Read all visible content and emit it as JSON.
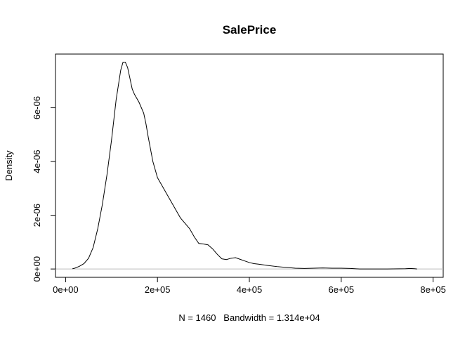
{
  "chart_data": {
    "type": "line",
    "title": "SalePrice",
    "xlabel": "N = 1460   Bandwidth = 1.314e+04",
    "ylabel": "Density",
    "xlim": [
      -22000,
      822000
    ],
    "ylim": [
      -3.1e-07,
      8e-06
    ],
    "x_ticks": [
      {
        "value": 0,
        "label": "0e+00"
      },
      {
        "value": 200000,
        "label": "2e+05"
      },
      {
        "value": 400000,
        "label": "4e+05"
      },
      {
        "value": 600000,
        "label": "6e+05"
      },
      {
        "value": 800000,
        "label": "8e+05"
      }
    ],
    "y_ticks": [
      {
        "value": 0,
        "label": "0e+00"
      },
      {
        "value": 2e-06,
        "label": "2e-06"
      },
      {
        "value": 4e-06,
        "label": "4e-06"
      },
      {
        "value": 6e-06,
        "label": "6e-06"
      }
    ],
    "baseline": 0,
    "baseline_color": "#bebebe",
    "line_color": "#000000",
    "series": [
      {
        "x": [
          15000,
          20000,
          30000,
          40000,
          50000,
          60000,
          70000,
          80000,
          90000,
          100000,
          110000,
          120000,
          125000,
          130000,
          135000,
          140000,
          145000,
          150000,
          160000,
          170000,
          175000,
          180000,
          190000,
          200000,
          210000,
          220000,
          230000,
          240000,
          250000,
          260000,
          270000,
          280000,
          290000,
          300000,
          310000,
          320000,
          330000,
          340000,
          350000,
          360000,
          370000,
          380000,
          390000,
          400000,
          410000,
          420000,
          440000,
          460000,
          480000,
          500000,
          520000,
          540000,
          560000,
          580000,
          600000,
          620000,
          630000,
          640000,
          700000,
          740000,
          750000,
          760000,
          765000
        ],
        "y": [
          1e-08,
          3e-08,
          1e-07,
          2e-07,
          4e-07,
          8e-07,
          1.5e-06,
          2.4e-06,
          3.5e-06,
          4.8e-06,
          6.3e-06,
          7.4e-06,
          7.7e-06,
          7.7e-06,
          7.5e-06,
          7.1e-06,
          6.7e-06,
          6.5e-06,
          6.2e-06,
          5.8e-06,
          5.4e-06,
          4.9e-06,
          4e-06,
          3.4e-06,
          3.1e-06,
          2.8e-06,
          2.5e-06,
          2.2e-06,
          1.9e-06,
          1.7e-06,
          1.5e-06,
          1.2e-06,
          9.5e-07,
          9.3e-07,
          9e-07,
          7.5e-07,
          5.5e-07,
          3.8e-07,
          3.5e-07,
          4e-07,
          4.2e-07,
          3.6e-07,
          3e-07,
          2.4e-07,
          2e-07,
          1.8e-07,
          1.3e-07,
          9e-08,
          6e-08,
          3e-08,
          2e-08,
          3e-08,
          4e-08,
          3e-08,
          3e-08,
          2e-08,
          1e-08,
          0.0,
          0.0,
          1e-08,
          2e-08,
          1e-08,
          0.0
        ]
      }
    ]
  }
}
